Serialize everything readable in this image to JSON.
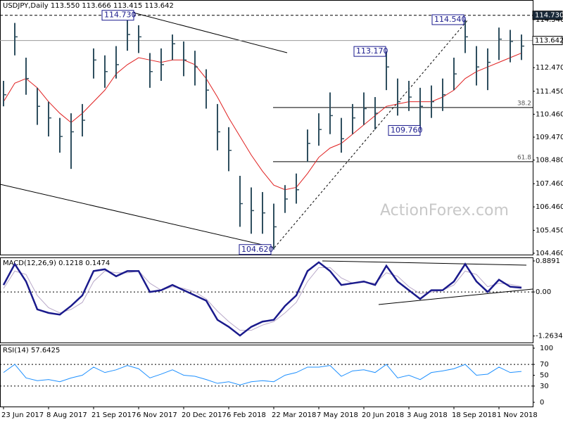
{
  "chart_data": {
    "type": "ohlc",
    "title": "USDJPY,Daily  113.550 113.666 113.415 113.642",
    "watermark": "ActionForex.com",
    "color": "#2f4f5f",
    "categories": [
      "23 Jun 2017",
      null,
      null,
      null,
      "8 Aug 2017",
      null,
      null,
      null,
      "21 Sep 2017",
      null,
      null,
      null,
      "6 Nov 2017",
      null,
      null,
      null,
      "20 Dec 2017",
      null,
      null,
      null,
      "6 Feb 2018",
      null,
      null,
      null,
      "22 Mar 2018",
      null,
      null,
      null,
      "7 May 2018",
      null,
      null,
      null,
      "20 Jun 2018",
      null,
      null,
      null,
      "3 Aug 2018",
      null,
      null,
      null,
      "18 Sep 2018",
      null,
      null,
      null,
      "1 Nov 2018",
      null,
      null
    ],
    "high": [
      111.9,
      114.4,
      112.9,
      111.6,
      111.0,
      110.3,
      110.5,
      110.9,
      113.3,
      113.0,
      113.4,
      114.73,
      114.3,
      113.1,
      113.3,
      113.9,
      113.6,
      113.2,
      112.4,
      110.9,
      109.9,
      107.8,
      107.3,
      107.1,
      106.6,
      107.4,
      107.9,
      109.8,
      110.5,
      111.4,
      110.3,
      110.9,
      111.4,
      111.2,
      113.17,
      112.0,
      111.9,
      111.6,
      111.7,
      112.0,
      112.9,
      114.54,
      113.4,
      113.3,
      114.2,
      114.1,
      113.9
    ],
    "low": [
      110.8,
      113.0,
      111.3,
      110.0,
      109.5,
      108.8,
      108.1,
      109.5,
      112.0,
      111.6,
      112.0,
      113.2,
      113.1,
      111.6,
      111.9,
      112.8,
      112.1,
      111.7,
      110.7,
      108.9,
      108.0,
      105.6,
      105.3,
      105.3,
      104.62,
      106.2,
      106.6,
      108.4,
      109.1,
      109.6,
      108.8,
      109.6,
      110.0,
      109.8,
      111.5,
      110.4,
      110.6,
      109.76,
      110.3,
      110.6,
      111.5,
      113.1,
      111.7,
      111.5,
      112.8,
      112.7,
      112.8
    ],
    "close": [
      111.3,
      113.8,
      112.0,
      110.8,
      110.3,
      109.5,
      109.7,
      110.2,
      112.8,
      112.3,
      112.6,
      113.9,
      113.8,
      112.3,
      112.6,
      113.5,
      112.8,
      112.5,
      111.5,
      109.7,
      108.9,
      106.6,
      106.3,
      106.2,
      105.6,
      106.8,
      107.2,
      109.2,
      109.8,
      110.4,
      109.4,
      110.3,
      110.7,
      110.5,
      112.5,
      111.0,
      111.2,
      110.8,
      111.0,
      111.3,
      112.2,
      113.8,
      112.5,
      112.7,
      113.7,
      113.6,
      113.4
    ],
    "ma": {
      "color": "#e02020",
      "values": [
        111.0,
        111.8,
        112.0,
        111.6,
        111.0,
        110.5,
        110.1,
        110.5,
        111.0,
        111.5,
        112.2,
        112.6,
        112.9,
        112.8,
        112.7,
        112.8,
        112.8,
        112.6,
        112.0,
        111.2,
        110.3,
        109.5,
        108.7,
        108.0,
        107.4,
        107.2,
        107.3,
        107.9,
        108.6,
        109.0,
        109.2,
        109.6,
        110.0,
        110.4,
        110.8,
        110.9,
        111.0,
        111.0,
        111.0,
        111.2,
        111.5,
        112.0,
        112.3,
        112.5,
        112.7,
        112.9,
        113.1
      ]
    },
    "ylim": [
      104.4,
      115.39
    ],
    "yticks": [
      {
        "value": 114.54,
        "label": "114.540"
      },
      {
        "value": 112.47,
        "label": "112.470"
      },
      {
        "value": 111.45,
        "label": "111.450"
      },
      {
        "value": 110.46,
        "label": "110.460"
      },
      {
        "value": 109.47,
        "label": "109.470"
      },
      {
        "value": 108.48,
        "label": "108.480"
      },
      {
        "value": 107.46,
        "label": "107.460"
      },
      {
        "value": 106.46,
        "label": "106.460"
      },
      {
        "value": 105.45,
        "label": "105.450"
      },
      {
        "value": 104.46,
        "label": "104.460"
      }
    ],
    "price_markers": [
      {
        "value": 114.73,
        "label": "114.730"
      },
      {
        "value": 113.642,
        "label": "113.642"
      }
    ],
    "annotations": [
      {
        "value": 114.73,
        "label": "114.730"
      },
      {
        "value": 104.62,
        "label": "104.620"
      },
      {
        "value": 113.17,
        "label": "113.170"
      },
      {
        "value": 109.76,
        "label": "109.760"
      },
      {
        "value": 114.54,
        "label": "114.540"
      }
    ],
    "fib_levels": [
      {
        "value": 110.75,
        "label": "38.2"
      },
      {
        "value": 108.41,
        "label": "61.8"
      }
    ],
    "macd": {
      "title": "MACD(12,26,9) 0.1218 0.1474",
      "color": "#1a1a8c",
      "signal_color": "#b8a8c8",
      "values": [
        0.2,
        0.8,
        0.3,
        -0.5,
        -0.6,
        -0.65,
        -0.4,
        -0.1,
        0.6,
        0.65,
        0.45,
        0.6,
        0.6,
        0.0,
        0.05,
        0.2,
        0.05,
        -0.1,
        -0.25,
        -0.8,
        -1.0,
        -1.25,
        -1.0,
        -0.85,
        -0.8,
        -0.4,
        -0.1,
        0.6,
        0.85,
        0.6,
        0.2,
        0.25,
        0.3,
        0.2,
        0.75,
        0.3,
        0.05,
        -0.2,
        0.05,
        0.05,
        0.3,
        0.8,
        0.3,
        0.0,
        0.35,
        0.15,
        0.12
      ],
      "signal": [
        0.1,
        0.6,
        0.5,
        -0.1,
        -0.45,
        -0.6,
        -0.5,
        -0.3,
        0.3,
        0.6,
        0.55,
        0.55,
        0.6,
        0.25,
        0.05,
        0.15,
        0.1,
        0.0,
        -0.2,
        -0.55,
        -0.85,
        -1.1,
        -1.1,
        -0.95,
        -0.85,
        -0.6,
        -0.3,
        0.3,
        0.7,
        0.7,
        0.4,
        0.25,
        0.28,
        0.25,
        0.55,
        0.45,
        0.15,
        -0.05,
        0.0,
        0.05,
        0.2,
        0.6,
        0.5,
        0.15,
        0.25,
        0.22,
        0.15
      ],
      "ylim": [
        -1.45,
        0.99
      ],
      "yticks": [
        0.8891,
        {
          "value": 0,
          "label": "0.00"
        },
        -1.2634
      ]
    },
    "rsi": {
      "title": "RSI(14) 57.6425",
      "color": "#1e90ff",
      "values": [
        55,
        70,
        45,
        40,
        42,
        38,
        45,
        50,
        65,
        55,
        60,
        68,
        62,
        45,
        52,
        60,
        50,
        48,
        42,
        35,
        38,
        32,
        38,
        40,
        38,
        50,
        55,
        65,
        65,
        68,
        48,
        58,
        60,
        55,
        70,
        45,
        50,
        42,
        55,
        58,
        62,
        70,
        50,
        52,
        65,
        55,
        57
      ],
      "ylim": [
        -7.8,
        106.5
      ],
      "yticks": [
        100,
        70,
        50,
        30,
        0
      ],
      "levels": [
        70,
        30
      ]
    }
  }
}
